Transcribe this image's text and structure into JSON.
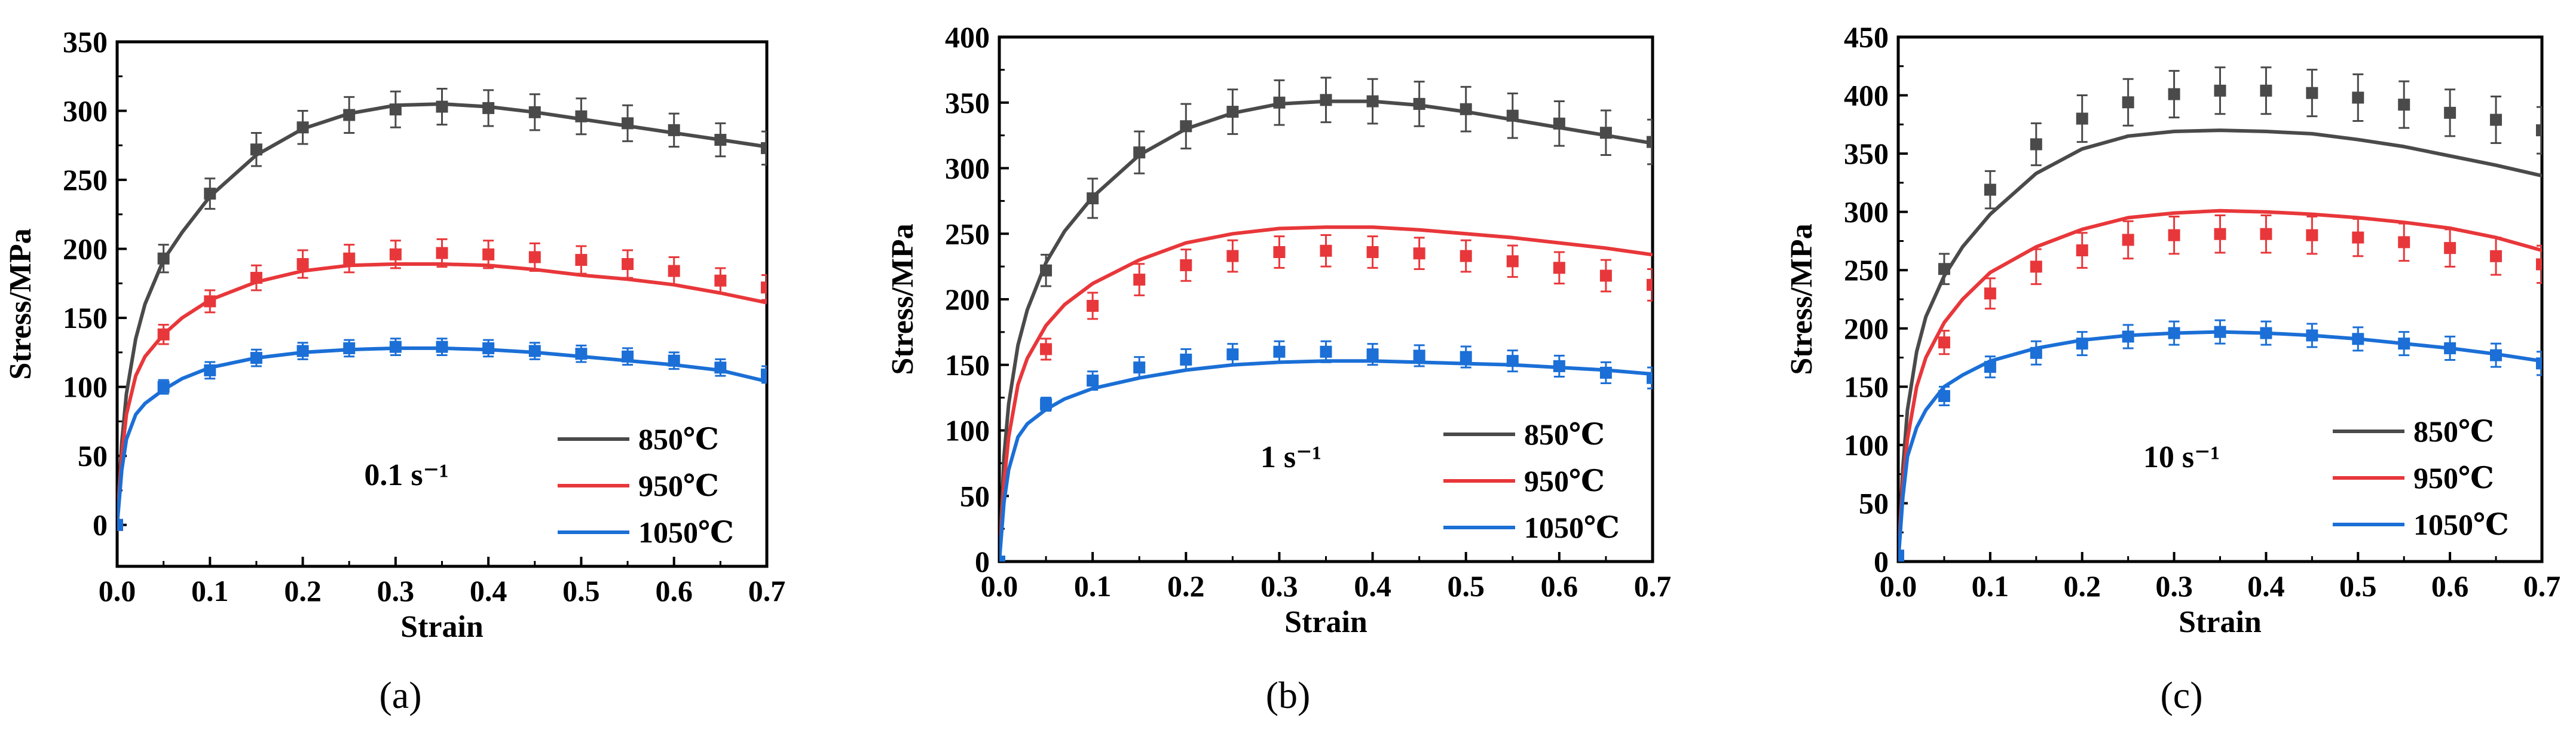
{
  "chart_data": [
    {
      "type": "line",
      "panel_label": "(a)",
      "rate_label": "0.1 s⁻¹",
      "xlabel": "Strain",
      "ylabel": "Stress/MPa",
      "xlim": [
        0,
        0.7
      ],
      "ylim": [
        -30,
        350
      ],
      "xticks": [
        "0.0",
        "0.1",
        "0.2",
        "0.3",
        "0.4",
        "0.5",
        "0.6",
        "0.7"
      ],
      "yticks": [
        "0",
        "50",
        "100",
        "150",
        "200",
        "250",
        "300",
        "350"
      ],
      "legend_position": "right",
      "series": [
        {
          "name": "850℃",
          "color": "#4a4a4a",
          "line": {
            "x": [
              0,
              0.005,
              0.01,
              0.02,
              0.03,
              0.05,
              0.07,
              0.1,
              0.15,
              0.2,
              0.25,
              0.3,
              0.35,
              0.4,
              0.45,
              0.5,
              0.55,
              0.6,
              0.65,
              0.7
            ],
            "y": [
              0,
              60,
              95,
              135,
              160,
              192,
              212,
              238,
              268,
              287,
              298,
              304,
              305,
              303,
              299,
              294,
              289,
              284,
              279,
              274
            ]
          },
          "points": {
            "x": [
              0.0,
              0.05,
              0.1,
              0.15,
              0.2,
              0.25,
              0.3,
              0.35,
              0.4,
              0.45,
              0.5,
              0.55,
              0.6,
              0.65,
              0.7
            ],
            "y": [
              0,
              193,
              240,
              272,
              288,
              297,
              301,
              303,
              302,
              299,
              296,
              291,
              286,
              279,
              273
            ],
            "err": [
              3,
              10,
              11,
              12,
              12,
              13,
              13,
              13,
              13,
              13,
              13,
              13,
              12,
              12,
              12
            ]
          }
        },
        {
          "name": "950℃",
          "color": "#e8373a",
          "line": {
            "x": [
              0,
              0.005,
              0.01,
              0.02,
              0.03,
              0.05,
              0.07,
              0.1,
              0.15,
              0.2,
              0.25,
              0.3,
              0.35,
              0.4,
              0.45,
              0.5,
              0.55,
              0.6,
              0.65,
              0.7
            ],
            "y": [
              0,
              50,
              80,
              108,
              122,
              138,
              150,
              163,
              176,
              184,
              188,
              189,
              189,
              188,
              185,
              181,
              178,
              174,
              168,
              161
            ]
          },
          "points": {
            "x": [
              0.0,
              0.05,
              0.1,
              0.15,
              0.2,
              0.25,
              0.3,
              0.35,
              0.4,
              0.45,
              0.5,
              0.55,
              0.6,
              0.65,
              0.7
            ],
            "y": [
              0,
              138,
              162,
              179,
              189,
              193,
              196,
              197,
              196,
              194,
              192,
              189,
              184,
              177,
              172
            ],
            "err": [
              3,
              7,
              8,
              9,
              10,
              10,
              10,
              10,
              10,
              10,
              10,
              10,
              10,
              9,
              9
            ]
          }
        },
        {
          "name": "1050℃",
          "color": "#1b6fd6",
          "line": {
            "x": [
              0,
              0.005,
              0.01,
              0.02,
              0.03,
              0.05,
              0.07,
              0.1,
              0.15,
              0.2,
              0.25,
              0.3,
              0.35,
              0.4,
              0.45,
              0.5,
              0.55,
              0.6,
              0.65,
              0.7
            ],
            "y": [
              0,
              40,
              62,
              80,
              88,
              98,
              106,
              114,
              121,
              125,
              127,
              128,
              128,
              127,
              125,
              122,
              119,
              116,
              112,
              104
            ]
          },
          "points": {
            "x": [
              0.0,
              0.05,
              0.1,
              0.15,
              0.2,
              0.25,
              0.3,
              0.35,
              0.4,
              0.45,
              0.5,
              0.55,
              0.6,
              0.65,
              0.7
            ],
            "y": [
              0,
              100,
              112,
              121,
              126,
              128,
              129,
              129,
              128,
              126,
              124,
              122,
              119,
              114,
              109
            ],
            "err": [
              3,
              5,
              6,
              6,
              6,
              6,
              6,
              6,
              6,
              6,
              6,
              6,
              6,
              6,
              6
            ]
          }
        }
      ]
    },
    {
      "type": "line",
      "panel_label": "(b)",
      "rate_label": "1 s⁻¹",
      "xlabel": "Strain",
      "ylabel": "Stress/MPa",
      "xlim": [
        0,
        0.7
      ],
      "ylim": [
        0,
        400
      ],
      "xticks": [
        "0.0",
        "0.1",
        "0.2",
        "0.3",
        "0.4",
        "0.5",
        "0.6",
        "0.7"
      ],
      "yticks": [
        "0",
        "50",
        "100",
        "150",
        "200",
        "250",
        "300",
        "350",
        "400"
      ],
      "legend_position": "right",
      "series": [
        {
          "name": "850℃",
          "color": "#4a4a4a",
          "line": {
            "x": [
              0,
              0.005,
              0.01,
              0.02,
              0.03,
              0.05,
              0.07,
              0.1,
              0.15,
              0.2,
              0.25,
              0.3,
              0.35,
              0.4,
              0.45,
              0.5,
              0.55,
              0.6,
              0.65,
              0.7
            ],
            "y": [
              0,
              80,
              120,
              165,
              192,
              228,
              252,
              278,
              310,
              330,
              342,
              349,
              351,
              351,
              348,
              343,
              337,
              331,
              325,
              319
            ]
          },
          "points": {
            "x": [
              0.0,
              0.05,
              0.1,
              0.15,
              0.2,
              0.25,
              0.3,
              0.35,
              0.4,
              0.45,
              0.5,
              0.55,
              0.6,
              0.65,
              0.7
            ],
            "y": [
              0,
              222,
              277,
              312,
              332,
              343,
              350,
              352,
              351,
              349,
              345,
              340,
              334,
              327,
              320
            ],
            "err": [
              3,
              12,
              15,
              16,
              17,
              17,
              17,
              17,
              17,
              17,
              17,
              17,
              17,
              17,
              17
            ]
          }
        },
        {
          "name": "950℃",
          "color": "#e8373a",
          "line": {
            "x": [
              0,
              0.005,
              0.01,
              0.02,
              0.03,
              0.05,
              0.07,
              0.1,
              0.15,
              0.2,
              0.25,
              0.3,
              0.35,
              0.4,
              0.45,
              0.5,
              0.55,
              0.6,
              0.65,
              0.7
            ],
            "y": [
              0,
              60,
              95,
              135,
              155,
              180,
              196,
              212,
              230,
              243,
              250,
              254,
              255,
              255,
              253,
              250,
              247,
              243,
              239,
              234
            ]
          },
          "points": {
            "x": [
              0.0,
              0.05,
              0.1,
              0.15,
              0.2,
              0.25,
              0.3,
              0.35,
              0.4,
              0.45,
              0.5,
              0.55,
              0.6,
              0.65,
              0.7
            ],
            "y": [
              0,
              162,
              195,
              215,
              226,
              233,
              236,
              237,
              236,
              235,
              233,
              229,
              224,
              218,
              211
            ],
            "err": [
              3,
              8,
              10,
              12,
              12,
              12,
              12,
              12,
              12,
              12,
              12,
              12,
              12,
              12,
              12
            ]
          }
        },
        {
          "name": "1050℃",
          "color": "#1b6fd6",
          "line": {
            "x": [
              0,
              0.005,
              0.01,
              0.02,
              0.03,
              0.05,
              0.07,
              0.1,
              0.15,
              0.2,
              0.25,
              0.3,
              0.35,
              0.4,
              0.45,
              0.5,
              0.55,
              0.6,
              0.65,
              0.7
            ],
            "y": [
              0,
              45,
              70,
              95,
              105,
              116,
              124,
              132,
              140,
              146,
              150,
              152,
              153,
              153,
              152,
              151,
              150,
              148,
              146,
              143
            ]
          },
          "points": {
            "x": [
              0.0,
              0.05,
              0.1,
              0.15,
              0.2,
              0.25,
              0.3,
              0.35,
              0.4,
              0.45,
              0.5,
              0.55,
              0.6,
              0.65,
              0.7
            ],
            "y": [
              0,
              120,
              138,
              148,
              154,
              158,
              160,
              160,
              158,
              157,
              156,
              153,
              149,
              144,
              140
            ],
            "err": [
              3,
              5,
              7,
              8,
              8,
              8,
              8,
              8,
              8,
              8,
              8,
              8,
              8,
              8,
              8
            ]
          }
        }
      ]
    },
    {
      "type": "line",
      "panel_label": "(c)",
      "rate_label": "10 s⁻¹",
      "xlabel": "Strain",
      "ylabel": "Stress/MPa",
      "xlim": [
        0,
        0.7
      ],
      "ylim": [
        0,
        450
      ],
      "xticks": [
        "0.0",
        "0.1",
        "0.2",
        "0.3",
        "0.4",
        "0.5",
        "0.6",
        "0.7"
      ],
      "yticks": [
        "0",
        "50",
        "100",
        "150",
        "200",
        "250",
        "300",
        "350",
        "400",
        "450"
      ],
      "legend_position": "right",
      "series": [
        {
          "name": "850℃",
          "color": "#4a4a4a",
          "line": {
            "x": [
              0,
              0.005,
              0.01,
              0.02,
              0.03,
              0.05,
              0.07,
              0.1,
              0.15,
              0.2,
              0.25,
              0.3,
              0.35,
              0.4,
              0.45,
              0.5,
              0.55,
              0.6,
              0.65,
              0.7
            ],
            "y": [
              0,
              80,
              130,
              180,
              210,
              245,
              270,
              298,
              333,
              354,
              365,
              369,
              370,
              369,
              367,
              362,
              356,
              348,
              340,
              331
            ]
          },
          "points": {
            "x": [
              0.0,
              0.05,
              0.1,
              0.15,
              0.2,
              0.25,
              0.3,
              0.35,
              0.4,
              0.45,
              0.5,
              0.55,
              0.6,
              0.65,
              0.7
            ],
            "y": [
              5,
              251,
              319,
              358,
              380,
              394,
              401,
              404,
              404,
              402,
              398,
              392,
              385,
              379,
              370
            ],
            "err": [
              3,
              13,
              16,
              18,
              20,
              20,
              20,
              20,
              20,
              20,
              20,
              20,
              20,
              20,
              20
            ]
          }
        },
        {
          "name": "950℃",
          "color": "#e8373a",
          "line": {
            "x": [
              0,
              0.005,
              0.01,
              0.02,
              0.03,
              0.05,
              0.07,
              0.1,
              0.15,
              0.2,
              0.25,
              0.3,
              0.35,
              0.4,
              0.45,
              0.5,
              0.55,
              0.6,
              0.65,
              0.7
            ],
            "y": [
              0,
              65,
              105,
              150,
              175,
              205,
              225,
              248,
              270,
              285,
              295,
              299,
              301,
              300,
              298,
              295,
              291,
              286,
              278,
              267
            ]
          },
          "points": {
            "x": [
              0.0,
              0.05,
              0.1,
              0.15,
              0.2,
              0.25,
              0.3,
              0.35,
              0.4,
              0.45,
              0.5,
              0.55,
              0.6,
              0.65,
              0.7
            ],
            "y": [
              5,
              188,
              230,
              253,
              267,
              276,
              280,
              281,
              281,
              280,
              278,
              274,
              269,
              262,
              255
            ],
            "err": [
              3,
              10,
              13,
              15,
              15,
              16,
              16,
              16,
              16,
              16,
              16,
              16,
              16,
              16,
              16
            ]
          }
        },
        {
          "name": "1050℃",
          "color": "#1b6fd6",
          "line": {
            "x": [
              0,
              0.005,
              0.01,
              0.02,
              0.03,
              0.05,
              0.07,
              0.1,
              0.15,
              0.2,
              0.25,
              0.3,
              0.35,
              0.4,
              0.45,
              0.5,
              0.55,
              0.6,
              0.65,
              0.7
            ],
            "y": [
              0,
              55,
              90,
              115,
              130,
              150,
              160,
              172,
              183,
              190,
              194,
              196,
              197,
              196,
              194,
              191,
              187,
              183,
              178,
              172
            ]
          },
          "points": {
            "x": [
              0.0,
              0.05,
              0.1,
              0.15,
              0.2,
              0.25,
              0.3,
              0.35,
              0.4,
              0.45,
              0.5,
              0.55,
              0.6,
              0.65,
              0.7
            ],
            "y": [
              5,
              142,
              167,
              179,
              187,
              193,
              196,
              197,
              196,
              194,
              191,
              187,
              183,
              177,
              170
            ],
            "err": [
              3,
              8,
              9,
              10,
              10,
              10,
              10,
              10,
              10,
              10,
              10,
              10,
              10,
              10,
              10
            ]
          }
        }
      ]
    }
  ]
}
